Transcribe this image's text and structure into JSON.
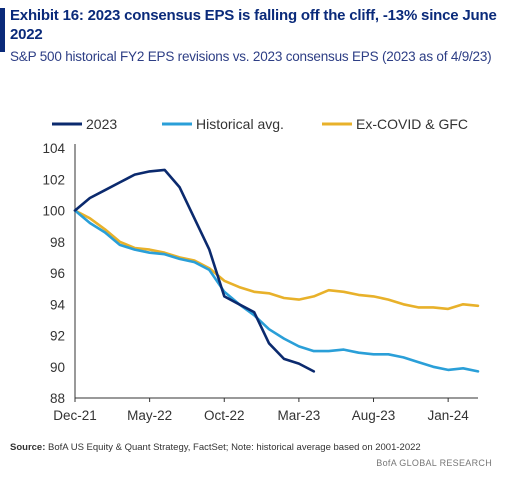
{
  "header": {
    "title": "Exhibit 16: 2023  consensus EPS is falling off the cliff, -13% since June 2022",
    "subtitle": "S&P 500 historical FY2 EPS revisions vs. 2023 consensus EPS (2023 as of 4/9/23)"
  },
  "footer": {
    "source_label": "Source:",
    "source_text": " BofA US Equity  & Quant Strategy, FactSet; Note: historical average based on 2001-2022",
    "credit": "BofA GLOBAL RESEARCH"
  },
  "chart_data": {
    "type": "line",
    "title": "",
    "xlabel": "",
    "ylabel": "",
    "ylim": [
      88,
      104
    ],
    "yticks": [
      88,
      90,
      92,
      94,
      96,
      98,
      100,
      102,
      104
    ],
    "xlim": [
      "2021-12",
      "2024-03"
    ],
    "x_ticks": [
      "Dec-21",
      "May-22",
      "Oct-22",
      "Mar-23",
      "Aug-23",
      "Jan-24"
    ],
    "grid": false,
    "legend_position": "top",
    "series": [
      {
        "name": "2023",
        "color": "#0b2a6e",
        "x": [
          "2021-12",
          "2022-01",
          "2022-02",
          "2022-03",
          "2022-04",
          "2022-05",
          "2022-06",
          "2022-07",
          "2022-08",
          "2022-09",
          "2022-10",
          "2022-11",
          "2022-12",
          "2023-01",
          "2023-02",
          "2023-03",
          "2023-04"
        ],
        "values": [
          100,
          100.8,
          101.3,
          101.8,
          102.3,
          102.5,
          102.6,
          101.5,
          99.5,
          97.5,
          94.5,
          94.0,
          93.5,
          91.5,
          90.5,
          90.2,
          89.7
        ]
      },
      {
        "name": "Historical avg.",
        "color": "#2a9fd8",
        "x": [
          "2021-12",
          "2022-01",
          "2022-02",
          "2022-03",
          "2022-04",
          "2022-05",
          "2022-06",
          "2022-07",
          "2022-08",
          "2022-09",
          "2022-10",
          "2022-11",
          "2022-12",
          "2023-01",
          "2023-02",
          "2023-03",
          "2023-04",
          "2023-05",
          "2023-06",
          "2023-07",
          "2023-08",
          "2023-09",
          "2023-10",
          "2023-11",
          "2023-12",
          "2024-01",
          "2024-02",
          "2024-03"
        ],
        "values": [
          100,
          99.2,
          98.6,
          97.8,
          97.5,
          97.3,
          97.2,
          96.9,
          96.7,
          96.2,
          94.8,
          94.0,
          93.3,
          92.4,
          91.8,
          91.3,
          91.0,
          91.0,
          91.1,
          90.9,
          90.8,
          90.8,
          90.6,
          90.3,
          90.0,
          89.8,
          89.9,
          89.7
        ]
      },
      {
        "name": "Ex-COVID & GFC",
        "color": "#e8b12a",
        "x": [
          "2021-12",
          "2022-01",
          "2022-02",
          "2022-03",
          "2022-04",
          "2022-05",
          "2022-06",
          "2022-07",
          "2022-08",
          "2022-09",
          "2022-10",
          "2022-11",
          "2022-12",
          "2023-01",
          "2023-02",
          "2023-03",
          "2023-04",
          "2023-05",
          "2023-06",
          "2023-07",
          "2023-08",
          "2023-09",
          "2023-10",
          "2023-11",
          "2023-12",
          "2024-01",
          "2024-02",
          "2024-03"
        ],
        "values": [
          100,
          99.5,
          98.8,
          98.0,
          97.6,
          97.5,
          97.3,
          97.0,
          96.8,
          96.3,
          95.5,
          95.1,
          94.8,
          94.7,
          94.4,
          94.3,
          94.5,
          94.9,
          94.8,
          94.6,
          94.5,
          94.3,
          94.0,
          93.8,
          93.8,
          93.7,
          94.0,
          93.9
        ]
      }
    ]
  }
}
